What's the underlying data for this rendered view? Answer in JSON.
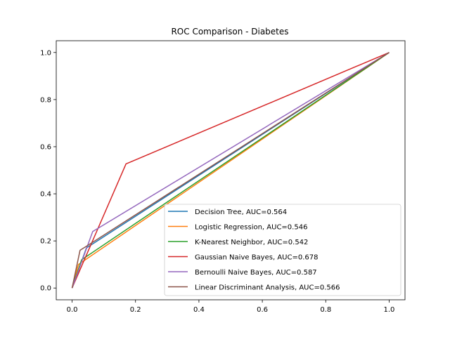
{
  "chart_data": {
    "type": "line",
    "title": "ROC Comparison - Diabetes",
    "xlabel": "",
    "ylabel": "",
    "xlim": [
      -0.05,
      1.05
    ],
    "ylim": [
      -0.05,
      1.05
    ],
    "x_ticks": [
      "0.0",
      "0.2",
      "0.4",
      "0.6",
      "0.8",
      "1.0"
    ],
    "y_ticks": [
      "0.0",
      "0.2",
      "0.4",
      "0.6",
      "0.8",
      "1.0"
    ],
    "grid": false,
    "legend_position": "lower-right",
    "series": [
      {
        "name": "Decision Tree, AUC=0.564",
        "color": "#1f77b4",
        "x": [
          0.0,
          0.045,
          1.0
        ],
        "y": [
          0.0,
          0.17,
          1.0
        ]
      },
      {
        "name": "Logistic Regression, AUC=0.546",
        "color": "#ff7f0e",
        "x": [
          0.0,
          0.02,
          1.0
        ],
        "y": [
          0.0,
          0.1,
          1.0
        ]
      },
      {
        "name": "K-Nearest Neighbor, AUC=0.542",
        "color": "#2ca02c",
        "x": [
          0.0,
          0.03,
          1.0
        ],
        "y": [
          0.0,
          0.12,
          1.0
        ]
      },
      {
        "name": "Gaussian Naive Bayes, AUC=0.678",
        "color": "#d62728",
        "x": [
          0.0,
          0.17,
          1.0
        ],
        "y": [
          0.0,
          0.527,
          1.0
        ]
      },
      {
        "name": "Bernoulli Naive Bayes, AUC=0.587",
        "color": "#9467bd",
        "x": [
          0.0,
          0.065,
          1.0
        ],
        "y": [
          0.0,
          0.24,
          1.0
        ]
      },
      {
        "name": "Linear Discriminant Analysis, AUC=0.566",
        "color": "#8c564b",
        "x": [
          0.0,
          0.025,
          1.0
        ],
        "y": [
          0.0,
          0.16,
          1.0
        ]
      }
    ]
  }
}
